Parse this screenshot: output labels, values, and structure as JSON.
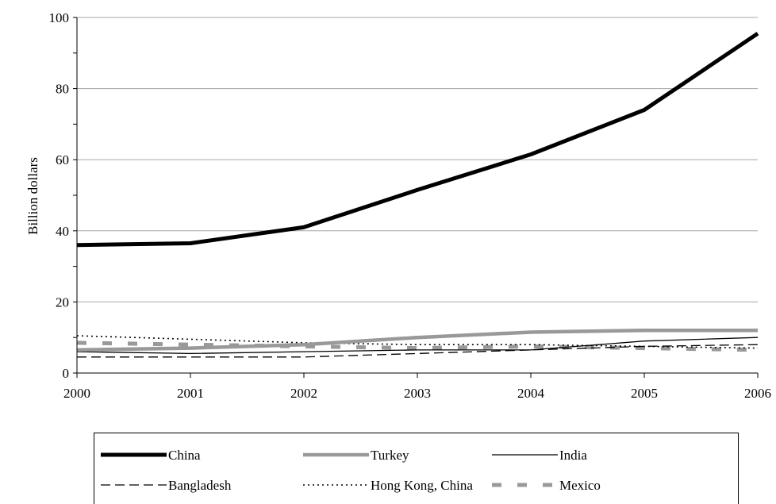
{
  "chart_data": {
    "type": "line",
    "title": "",
    "xlabel": "",
    "ylabel": "Billion dollars",
    "x": [
      2000,
      2001,
      2002,
      2003,
      2004,
      2005,
      2006
    ],
    "xlim": [
      2000,
      2006
    ],
    "ylim": [
      0,
      100
    ],
    "yticks": [
      0,
      20,
      40,
      60,
      80,
      100
    ],
    "grid": "horizontal",
    "legend_position": "bottom",
    "series": [
      {
        "name": "China",
        "values": [
          36,
          36.5,
          41,
          51.5,
          61.5,
          74,
          95.5
        ],
        "color": "#000000",
        "style": "thick-solid"
      },
      {
        "name": "Turkey",
        "values": [
          6.5,
          7,
          8,
          10,
          11.5,
          12,
          12
        ],
        "color": "#999999",
        "style": "thick-solid"
      },
      {
        "name": "India",
        "values": [
          6,
          5.5,
          6,
          6.5,
          6.5,
          9,
          10
        ],
        "color": "#000000",
        "style": "thin-solid"
      },
      {
        "name": "Bangladesh",
        "values": [
          4.5,
          4.5,
          4.5,
          5.5,
          6.5,
          7.5,
          8
        ],
        "color": "#000000",
        "style": "dashed"
      },
      {
        "name": "Hong Kong, China",
        "values": [
          10.5,
          9.5,
          8.5,
          8,
          8,
          7.5,
          7
        ],
        "color": "#000000",
        "style": "dotted"
      },
      {
        "name": "Mexico",
        "values": [
          8.5,
          8,
          7.5,
          7,
          7.5,
          7,
          6.5
        ],
        "color": "#999999",
        "style": "thick-dashed"
      }
    ]
  }
}
